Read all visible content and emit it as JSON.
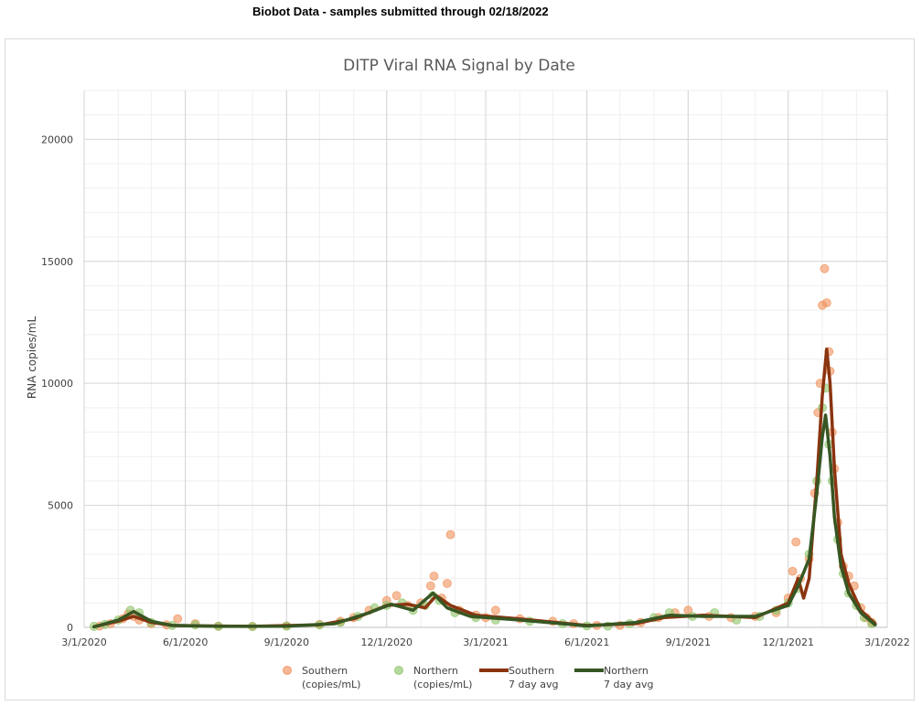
{
  "header": {
    "text": "Biobot Data - samples submitted through 02/18/2022"
  },
  "chart_data": {
    "type": "scatter",
    "title": "DITP Viral RNA Signal by Date",
    "xlabel": "",
    "ylabel": "RNA copies/mL",
    "xlim": [
      "2020-03-01",
      "2022-03-01"
    ],
    "ylim": [
      0,
      22000
    ],
    "x_ticks": [
      "3/1/2020",
      "6/1/2020",
      "9/1/2020",
      "12/1/2020",
      "3/1/2021",
      "6/1/2021",
      "9/1/2021",
      "12/1/2021",
      "3/1/2022"
    ],
    "y_ticks": [
      0,
      5000,
      10000,
      15000,
      20000
    ],
    "grid": true,
    "legend_position": "bottom",
    "colors": {
      "southern_point": "#f0915a",
      "northern_point": "#8fc56b",
      "southern_avg": "#8a3410",
      "northern_avg": "#375623"
    },
    "legend": [
      {
        "line1": "Southern",
        "line2": "(copies/mL)",
        "kind": "point",
        "color": "#f0915a"
      },
      {
        "line1": "Northern",
        "line2": "(copies/mL)",
        "kind": "point",
        "color": "#8fc56b"
      },
      {
        "line1": "Southern",
        "line2": "7 day avg",
        "kind": "line",
        "color": "#8a3410"
      },
      {
        "line1": "Northern",
        "line2": "7 day avg",
        "kind": "line",
        "color": "#375623"
      }
    ],
    "series": [
      {
        "name": "Southern (copies/mL)",
        "kind": "scatter",
        "points": [
          [
            "2020-03-15",
            50
          ],
          [
            "2020-03-25",
            150
          ],
          [
            "2020-04-05",
            350
          ],
          [
            "2020-04-10",
            550
          ],
          [
            "2020-04-15",
            450
          ],
          [
            "2020-04-20",
            300
          ],
          [
            "2020-05-01",
            150
          ],
          [
            "2020-05-15",
            100
          ],
          [
            "2020-05-25",
            350
          ],
          [
            "2020-06-10",
            150
          ],
          [
            "2020-07-01",
            50
          ],
          [
            "2020-08-01",
            40
          ],
          [
            "2020-09-01",
            60
          ],
          [
            "2020-10-01",
            120
          ],
          [
            "2020-10-20",
            250
          ],
          [
            "2020-11-01",
            400
          ],
          [
            "2020-11-15",
            700
          ],
          [
            "2020-12-01",
            1100
          ],
          [
            "2020-12-10",
            1300
          ],
          [
            "2020-12-20",
            900
          ],
          [
            "2021-01-01",
            1000
          ],
          [
            "2021-01-10",
            1700
          ],
          [
            "2021-01-13",
            2100
          ],
          [
            "2021-01-20",
            1200
          ],
          [
            "2021-01-25",
            1800
          ],
          [
            "2021-01-28",
            3800
          ],
          [
            "2021-02-05",
            700
          ],
          [
            "2021-02-20",
            500
          ],
          [
            "2021-03-01",
            400
          ],
          [
            "2021-03-10",
            700
          ],
          [
            "2021-04-01",
            350
          ],
          [
            "2021-05-01",
            250
          ],
          [
            "2021-05-20",
            150
          ],
          [
            "2021-06-10",
            80
          ],
          [
            "2021-07-01",
            80
          ],
          [
            "2021-07-20",
            200
          ],
          [
            "2021-08-05",
            400
          ],
          [
            "2021-08-20",
            600
          ],
          [
            "2021-09-01",
            700
          ],
          [
            "2021-09-20",
            450
          ],
          [
            "2021-10-10",
            400
          ],
          [
            "2021-11-01",
            450
          ],
          [
            "2021-11-20",
            600
          ],
          [
            "2021-12-01",
            1200
          ],
          [
            "2021-12-05",
            2300
          ],
          [
            "2021-12-08",
            3500
          ],
          [
            "2021-12-12",
            2000
          ],
          [
            "2021-12-20",
            2800
          ],
          [
            "2021-12-25",
            5500
          ],
          [
            "2021-12-28",
            8800
          ],
          [
            "2021-12-30",
            10000
          ],
          [
            "2022-01-01",
            13200
          ],
          [
            "2022-01-03",
            14700
          ],
          [
            "2022-01-05",
            13300
          ],
          [
            "2022-01-07",
            11300
          ],
          [
            "2022-01-08",
            10500
          ],
          [
            "2022-01-10",
            8000
          ],
          [
            "2022-01-12",
            6500
          ],
          [
            "2022-01-15",
            4300
          ],
          [
            "2022-01-20",
            2500
          ],
          [
            "2022-01-25",
            2100
          ],
          [
            "2022-01-30",
            1700
          ],
          [
            "2022-02-05",
            800
          ],
          [
            "2022-02-10",
            400
          ],
          [
            "2022-02-15",
            200
          ]
        ]
      },
      {
        "name": "Northern (copies/mL)",
        "kind": "scatter",
        "points": [
          [
            "2020-03-10",
            40
          ],
          [
            "2020-03-20",
            120
          ],
          [
            "2020-04-01",
            300
          ],
          [
            "2020-04-12",
            700
          ],
          [
            "2020-04-20",
            600
          ],
          [
            "2020-05-01",
            200
          ],
          [
            "2020-05-20",
            80
          ],
          [
            "2020-06-10",
            100
          ],
          [
            "2020-07-01",
            40
          ],
          [
            "2020-08-01",
            30
          ],
          [
            "2020-09-01",
            50
          ],
          [
            "2020-10-01",
            100
          ],
          [
            "2020-10-20",
            200
          ],
          [
            "2020-11-05",
            450
          ],
          [
            "2020-11-20",
            800
          ],
          [
            "2020-12-01",
            900
          ],
          [
            "2020-12-15",
            1000
          ],
          [
            "2020-12-25",
            700
          ],
          [
            "2021-01-05",
            900
          ],
          [
            "2021-01-12",
            1300
          ],
          [
            "2021-01-18",
            1100
          ],
          [
            "2021-02-01",
            600
          ],
          [
            "2021-02-20",
            400
          ],
          [
            "2021-03-10",
            300
          ],
          [
            "2021-04-10",
            250
          ],
          [
            "2021-05-10",
            150
          ],
          [
            "2021-06-01",
            60
          ],
          [
            "2021-06-20",
            50
          ],
          [
            "2021-07-10",
            150
          ],
          [
            "2021-08-01",
            400
          ],
          [
            "2021-08-15",
            600
          ],
          [
            "2021-09-05",
            450
          ],
          [
            "2021-09-25",
            600
          ],
          [
            "2021-10-15",
            300
          ],
          [
            "2021-11-05",
            450
          ],
          [
            "2021-11-20",
            700
          ],
          [
            "2021-12-01",
            1000
          ],
          [
            "2021-12-10",
            1600
          ],
          [
            "2021-12-20",
            3000
          ],
          [
            "2021-12-27",
            6000
          ],
          [
            "2022-01-01",
            9000
          ],
          [
            "2022-01-04",
            9800
          ],
          [
            "2022-01-07",
            7500
          ],
          [
            "2022-01-10",
            6000
          ],
          [
            "2022-01-15",
            3600
          ],
          [
            "2022-01-20",
            2200
          ],
          [
            "2022-01-25",
            1400
          ],
          [
            "2022-02-01",
            900
          ],
          [
            "2022-02-08",
            400
          ],
          [
            "2022-02-15",
            150
          ]
        ]
      },
      {
        "name": "Southern 7 day avg",
        "kind": "line",
        "points": [
          [
            "2020-03-10",
            30
          ],
          [
            "2020-04-01",
            250
          ],
          [
            "2020-04-15",
            450
          ],
          [
            "2020-05-01",
            200
          ],
          [
            "2020-05-20",
            80
          ],
          [
            "2020-06-15",
            60
          ],
          [
            "2020-08-01",
            40
          ],
          [
            "2020-10-01",
            100
          ],
          [
            "2020-11-01",
            350
          ],
          [
            "2020-12-01",
            900
          ],
          [
            "2020-12-20",
            950
          ],
          [
            "2021-01-05",
            800
          ],
          [
            "2021-01-15",
            1300
          ],
          [
            "2021-01-28",
            900
          ],
          [
            "2021-02-20",
            500
          ],
          [
            "2021-04-01",
            350
          ],
          [
            "2021-06-01",
            80
          ],
          [
            "2021-07-15",
            150
          ],
          [
            "2021-08-10",
            400
          ],
          [
            "2021-09-15",
            500
          ],
          [
            "2021-11-01",
            400
          ],
          [
            "2021-12-01",
            1000
          ],
          [
            "2021-12-10",
            2000
          ],
          [
            "2021-12-15",
            1200
          ],
          [
            "2021-12-20",
            2000
          ],
          [
            "2021-12-27",
            6000
          ],
          [
            "2022-01-01",
            9500
          ],
          [
            "2022-01-05",
            11400
          ],
          [
            "2022-01-08",
            10000
          ],
          [
            "2022-01-12",
            6500
          ],
          [
            "2022-01-18",
            3000
          ],
          [
            "2022-01-25",
            1800
          ],
          [
            "2022-02-05",
            700
          ],
          [
            "2022-02-18",
            150
          ]
        ]
      },
      {
        "name": "Northern 7 day avg",
        "kind": "line",
        "points": [
          [
            "2020-03-10",
            20
          ],
          [
            "2020-04-01",
            300
          ],
          [
            "2020-04-15",
            650
          ],
          [
            "2020-05-01",
            250
          ],
          [
            "2020-05-20",
            80
          ],
          [
            "2020-07-01",
            40
          ],
          [
            "2020-09-01",
            50
          ],
          [
            "2020-10-15",
            150
          ],
          [
            "2020-11-15",
            600
          ],
          [
            "2020-12-05",
            950
          ],
          [
            "2020-12-25",
            700
          ],
          [
            "2021-01-12",
            1400
          ],
          [
            "2021-01-25",
            800
          ],
          [
            "2021-02-15",
            450
          ],
          [
            "2021-04-01",
            300
          ],
          [
            "2021-06-01",
            60
          ],
          [
            "2021-07-15",
            200
          ],
          [
            "2021-08-15",
            500
          ],
          [
            "2021-09-15",
            450
          ],
          [
            "2021-11-01",
            450
          ],
          [
            "2021-12-01",
            900
          ],
          [
            "2021-12-10",
            1700
          ],
          [
            "2021-12-20",
            2800
          ],
          [
            "2021-12-27",
            5500
          ],
          [
            "2022-01-01",
            7800
          ],
          [
            "2022-01-04",
            8700
          ],
          [
            "2022-01-08",
            7000
          ],
          [
            "2022-01-12",
            4500
          ],
          [
            "2022-01-18",
            2500
          ],
          [
            "2022-01-25",
            1400
          ],
          [
            "2022-02-05",
            600
          ],
          [
            "2022-02-18",
            100
          ]
        ]
      }
    ]
  }
}
